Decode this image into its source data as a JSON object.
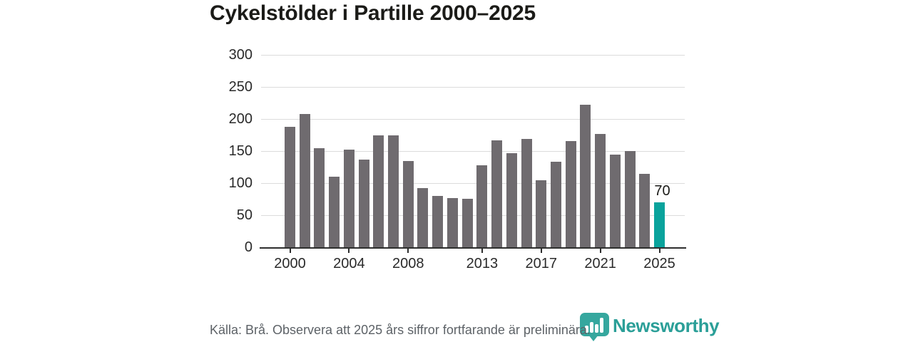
{
  "header": {
    "title": "Cykelstölder i Partille 2000–2025"
  },
  "chart_data": {
    "type": "bar",
    "title": "Cykelstölder i Partille 2000–2025",
    "x": [
      2000,
      2001,
      2002,
      2003,
      2004,
      2005,
      2006,
      2007,
      2008,
      2009,
      2010,
      2011,
      2012,
      2013,
      2014,
      2015,
      2016,
      2017,
      2018,
      2019,
      2020,
      2021,
      2022,
      2023,
      2024,
      2025
    ],
    "values": [
      188,
      208,
      154,
      110,
      152,
      137,
      175,
      174,
      134,
      92,
      80,
      77,
      76,
      128,
      167,
      147,
      169,
      105,
      133,
      166,
      222,
      177,
      145,
      150,
      115,
      70
    ],
    "xticks": [
      2000,
      2004,
      2008,
      2013,
      2017,
      2021,
      2025
    ],
    "yticks": [
      0,
      50,
      100,
      150,
      200,
      250,
      300
    ],
    "ylim": [
      0,
      300
    ],
    "grid": "horizontal",
    "legend": "none",
    "bar_color": "#6f6b6f",
    "highlight_color": "#0aa39c",
    "highlight": {
      "year": 2025,
      "label": "70"
    }
  },
  "footer": {
    "source_note": "Källa: Brå. Observera att 2025 års siffror fortfarande är preliminära.",
    "brand": {
      "name": "Newsworthy",
      "color": "#2b9f98",
      "icon": "newsworthy-pin-barchart-icon"
    }
  }
}
